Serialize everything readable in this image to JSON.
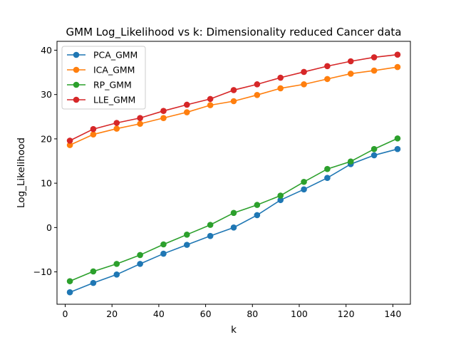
{
  "chart_data": {
    "type": "line",
    "title": "GMM Log_Likelihood vs k: Dimensionality reduced Cancer data",
    "xlabel": "k",
    "ylabel": "Log_Likelihood",
    "xlim": [
      -3.5,
      147.5
    ],
    "ylim": [
      -17.3,
      42.0
    ],
    "xticks": [
      0,
      20,
      40,
      60,
      80,
      100,
      120,
      140
    ],
    "yticks": [
      -10,
      0,
      10,
      20,
      30,
      40
    ],
    "ytick_labels": [
      "−10",
      "0",
      "10",
      "20",
      "30",
      "40"
    ],
    "grid": false,
    "legend_position": "top-left",
    "x": [
      2,
      12,
      22,
      32,
      42,
      52,
      62,
      72,
      82,
      92,
      102,
      112,
      122,
      132,
      142
    ],
    "series": [
      {
        "name": "PCA_GMM",
        "color": "#1f77b4",
        "values": [
          -14.6,
          -12.5,
          -10.6,
          -8.2,
          -5.9,
          -3.9,
          -1.9,
          0.0,
          2.8,
          6.2,
          8.6,
          11.2,
          14.3,
          16.3,
          17.7
        ]
      },
      {
        "name": "ICA_GMM",
        "color": "#ff7f0e",
        "values": [
          18.6,
          21.0,
          22.3,
          23.4,
          24.7,
          26.0,
          27.6,
          28.5,
          29.9,
          31.4,
          32.3,
          33.5,
          34.7,
          35.4,
          36.2
        ]
      },
      {
        "name": "RP_GMM",
        "color": "#2ca02c",
        "values": [
          -12.1,
          -9.9,
          -8.2,
          -6.2,
          -3.8,
          -1.6,
          0.6,
          3.3,
          5.1,
          7.2,
          10.3,
          13.2,
          14.9,
          17.7,
          20.1
        ]
      },
      {
        "name": "LLE_GMM",
        "color": "#d62728",
        "values": [
          19.6,
          22.2,
          23.6,
          24.7,
          26.3,
          27.7,
          29.0,
          31.0,
          32.3,
          33.8,
          35.1,
          36.4,
          37.5,
          38.4,
          39.0
        ]
      }
    ]
  }
}
